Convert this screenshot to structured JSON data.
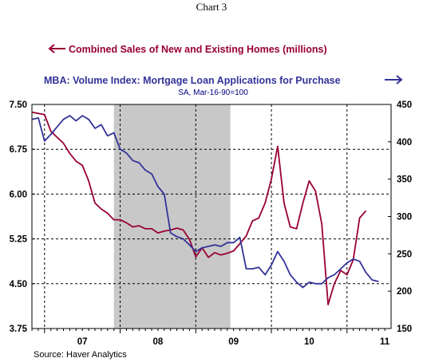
{
  "chart_title": "Chart 3",
  "source": "Source: Haver Analytics",
  "colors": {
    "sales": "#990033",
    "mba": "#333399",
    "recession": "#c8c8c8",
    "grid": "#000000"
  },
  "chart_data": {
    "type": "line",
    "x_ticks": [
      "07",
      "08",
      "09",
      "10",
      "11"
    ],
    "x_range": [
      2006.833,
      2011.583
    ],
    "left_axis": {
      "ticks": [
        "7.50",
        "6.75",
        "6.00",
        "5.25",
        "4.50",
        "3.75"
      ],
      "ylim": [
        3.75,
        7.5
      ]
    },
    "right_axis": {
      "ticks": [
        "450",
        "400",
        "350",
        "300",
        "250",
        "200",
        "150"
      ],
      "ylim": [
        150,
        450
      ]
    },
    "recession_shading": [
      2007.917,
      2009.458
    ],
    "series": [
      {
        "name": "Combined Sales of New and Existing Homes (millions)",
        "axis": "left",
        "legend_arrow": "left",
        "x": [
          2006.833,
          2006.917,
          2007.0,
          2007.083,
          2007.167,
          2007.25,
          2007.333,
          2007.417,
          2007.5,
          2007.583,
          2007.667,
          2007.75,
          2007.833,
          2007.917,
          2008.0,
          2008.083,
          2008.167,
          2008.25,
          2008.333,
          2008.417,
          2008.5,
          2008.583,
          2008.667,
          2008.75,
          2008.833,
          2008.917,
          2009.0,
          2009.083,
          2009.167,
          2009.25,
          2009.333,
          2009.417,
          2009.5,
          2009.583,
          2009.667,
          2009.75,
          2009.833,
          2009.917,
          2010.0,
          2010.083,
          2010.167,
          2010.25,
          2010.333,
          2010.417,
          2010.5,
          2010.583,
          2010.667,
          2010.75,
          2010.833,
          2010.917,
          2011.0,
          2011.083,
          2011.167,
          2011.25
        ],
        "values": [
          7.37,
          7.35,
          7.33,
          7.05,
          6.95,
          6.85,
          6.68,
          6.55,
          6.48,
          6.22,
          5.85,
          5.75,
          5.68,
          5.57,
          5.57,
          5.52,
          5.45,
          5.47,
          5.42,
          5.42,
          5.35,
          5.38,
          5.4,
          5.43,
          5.4,
          5.24,
          4.95,
          5.1,
          4.94,
          5.02,
          4.98,
          5.01,
          5.05,
          5.17,
          5.3,
          5.55,
          5.6,
          5.85,
          6.25,
          6.8,
          5.85,
          5.45,
          5.42,
          5.85,
          6.22,
          6.05,
          5.5,
          4.15,
          4.5,
          4.72,
          4.65,
          4.9,
          5.6,
          5.72
        ]
      },
      {
        "name": "MBA: Volume Index: Mortgage Loan Applications for Purchase",
        "subtitle": "SA, Mar-16-90=100",
        "axis": "right",
        "legend_arrow": "right",
        "x": [
          2006.833,
          2006.917,
          2007.0,
          2007.083,
          2007.167,
          2007.25,
          2007.333,
          2007.417,
          2007.5,
          2007.583,
          2007.667,
          2007.75,
          2007.833,
          2007.917,
          2008.0,
          2008.083,
          2008.167,
          2008.25,
          2008.333,
          2008.417,
          2008.5,
          2008.583,
          2008.667,
          2008.75,
          2008.833,
          2008.917,
          2009.0,
          2009.083,
          2009.167,
          2009.25,
          2009.333,
          2009.417,
          2009.5,
          2009.583,
          2009.667,
          2009.75,
          2009.833,
          2009.917,
          2010.0,
          2010.083,
          2010.167,
          2010.25,
          2010.333,
          2010.417,
          2010.5,
          2010.583,
          2010.667,
          2010.75,
          2010.833,
          2010.917,
          2011.0,
          2011.083,
          2011.167,
          2011.25,
          2011.333,
          2011.417
        ],
        "values": [
          430,
          432,
          401,
          410,
          420,
          430,
          435,
          428,
          435,
          430,
          418,
          423,
          408,
          412,
          390,
          385,
          375,
          372,
          362,
          357,
          340,
          330,
          278,
          273,
          270,
          262,
          253,
          258,
          260,
          262,
          260,
          265,
          265,
          272,
          230,
          230,
          232,
          222,
          235,
          253,
          240,
          222,
          212,
          205,
          212,
          210,
          210,
          218,
          222,
          230,
          238,
          243,
          240,
          225,
          215,
          213
        ]
      }
    ]
  }
}
